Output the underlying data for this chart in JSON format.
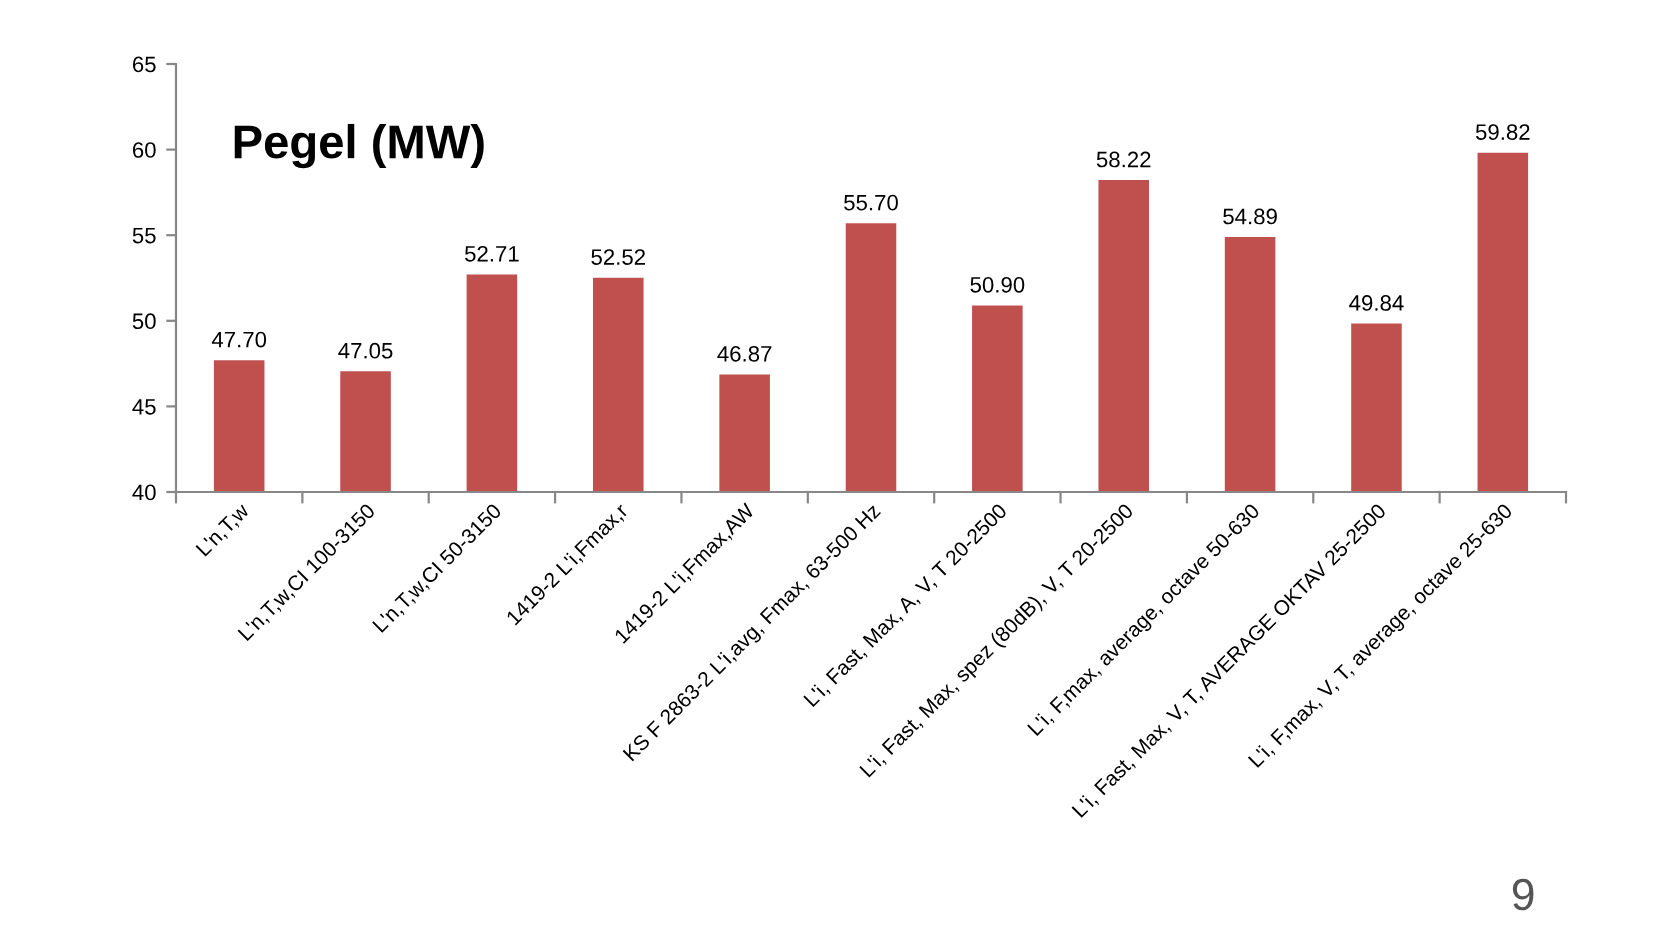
{
  "chart_data": {
    "type": "bar",
    "title": "Pegel (MW)",
    "categories": [
      "L'n,T,w",
      "L'n,T,w,CI 100-3150",
      "L'n,T,w,CI 50-3150",
      "1419-2 L'i,Fmax,r",
      "1419-2 L'i,Fmax,AW",
      "KS F 2863-2 L'i,avg, Fmax, 63-500 Hz",
      "L'i, Fast, Max, A, V, T 20-2500",
      "L'i, Fast, Max, spez (80dB), V, T 20-2500",
      "L'i, F,max, average, octave 50-630",
      "L'i, Fast, Max, V, T, AVERAGE OKTAV 25-2500",
      "L'i, F,max, V, T, average, octave 25-630"
    ],
    "values": [
      47.7,
      47.05,
      52.71,
      52.52,
      46.87,
      55.7,
      50.9,
      58.22,
      54.89,
      49.84,
      59.82
    ],
    "value_labels": [
      "47.70",
      "47.05",
      "52.71",
      "52.52",
      "46.87",
      "55.70",
      "50.90",
      "58.22",
      "54.89",
      "49.84",
      "59.82"
    ],
    "color": "#c0504d",
    "ylim": [
      40,
      65
    ],
    "yticks": [
      40,
      45,
      50,
      55,
      60,
      65
    ],
    "grid": false,
    "legend": false,
    "annotations": [
      "9"
    ]
  }
}
